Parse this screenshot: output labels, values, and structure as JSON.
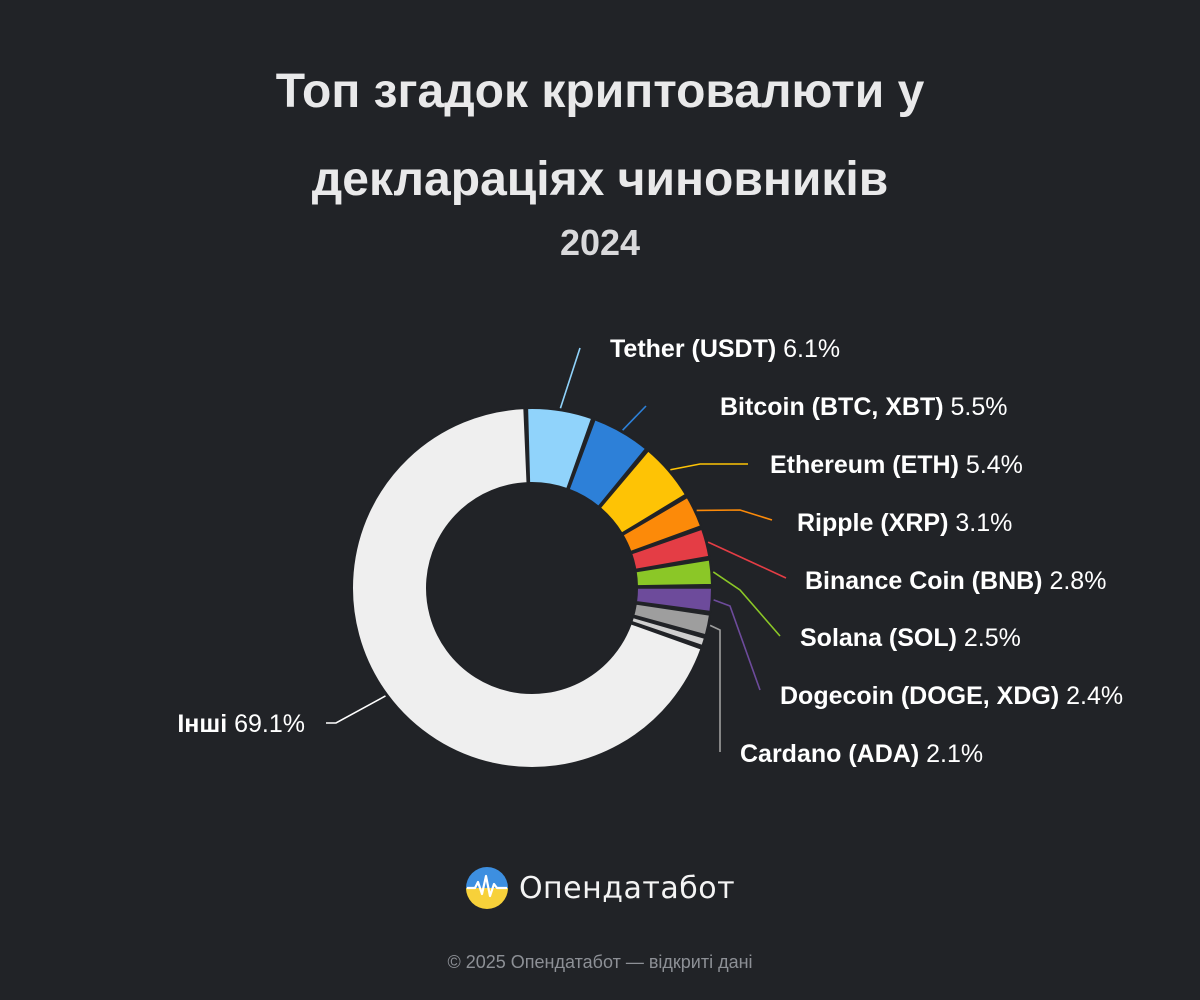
{
  "title_line1": "Топ згадок криптовалюти у",
  "title_line2": "деклараціях чиновників",
  "subtitle": "2024",
  "chart_data": {
    "type": "pie",
    "variant": "donut",
    "title": "Топ згадок криптовалюти у деклараціях чиновників",
    "subtitle": "2024",
    "unit": "%",
    "series": [
      {
        "name": "Tether (USDT)",
        "value": 6.1,
        "label": "6.1%",
        "color": "#90d3fb"
      },
      {
        "name": "Bitcoin (BTC, XBT)",
        "value": 5.5,
        "label": "5.5%",
        "color": "#2d80d8"
      },
      {
        "name": "Ethereum (ETH)",
        "value": 5.4,
        "label": "5.4%",
        "color": "#fec305"
      },
      {
        "name": "Ripple (XRP)",
        "value": 3.1,
        "label": "3.1%",
        "color": "#fc8a09"
      },
      {
        "name": "Binance Coin (BNB)",
        "value": 2.8,
        "label": "2.8%",
        "color": "#e43d45"
      },
      {
        "name": "Solana (SOL)",
        "value": 2.5,
        "label": "2.5%",
        "color": "#8bc727"
      },
      {
        "name": "Dogecoin (DOGE, XDG)",
        "value": 2.4,
        "label": "2.4%",
        "color": "#6d4b9b"
      },
      {
        "name": "Cardano (ADA)",
        "value": 2.1,
        "label": "2.1%",
        "color": "#9e9e9e"
      },
      {
        "name": "",
        "value": 1.0,
        "label": "",
        "color": "#cfcfcf"
      },
      {
        "name": "Інші",
        "value": 69.1,
        "label": "69.1%",
        "color": "#efefef"
      }
    ]
  },
  "footer": {
    "brand": "Опендатабот",
    "copyright": "© 2025 Опендатабот — відкриті дані"
  }
}
